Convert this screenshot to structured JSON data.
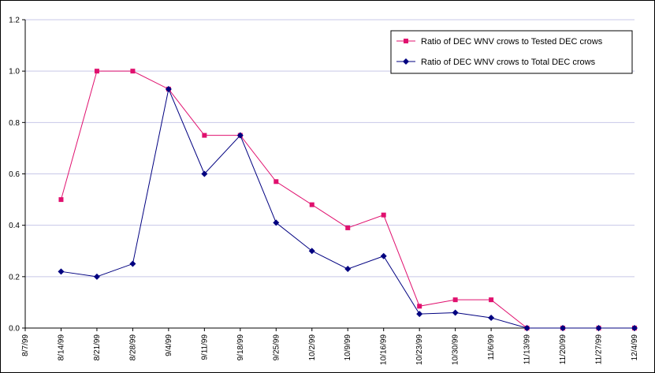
{
  "chart_data": {
    "type": "line",
    "x": [
      "8/7/99",
      "8/14/99",
      "8/21/99",
      "8/28/99",
      "9/4/99",
      "9/11/99",
      "9/18/99",
      "9/25/99",
      "10/2/99",
      "10/9/99",
      "10/16/99",
      "10/23/99",
      "10/30/99",
      "11/6/99",
      "11/13/99",
      "11/20/99",
      "11/27/99",
      "12/4/99"
    ],
    "ylim": [
      0,
      1.2
    ],
    "yticks": [
      "0.0",
      "0.2",
      "0.4",
      "0.6",
      "0.8",
      "1.0",
      "1.2"
    ],
    "grid": true,
    "legend_position": "top-right",
    "series": [
      {
        "name": "Ratio of DEC WNV crows to Tested DEC crows",
        "color": "#e0106e",
        "marker": "square",
        "values": [
          null,
          0.5,
          1.0,
          1.0,
          0.93,
          0.75,
          0.75,
          0.57,
          0.48,
          0.39,
          0.44,
          0.085,
          0.11,
          0.11,
          0.0,
          0.0,
          0.0,
          0.0
        ]
      },
      {
        "name": "Ratio of DEC WNV crows to Total DEC crows",
        "color": "#000080",
        "marker": "diamond",
        "values": [
          null,
          0.22,
          0.2,
          0.25,
          0.93,
          0.6,
          0.75,
          0.41,
          0.3,
          0.23,
          0.28,
          0.055,
          0.06,
          0.04,
          0.0,
          0.0,
          0.0,
          0.0
        ]
      }
    ]
  }
}
